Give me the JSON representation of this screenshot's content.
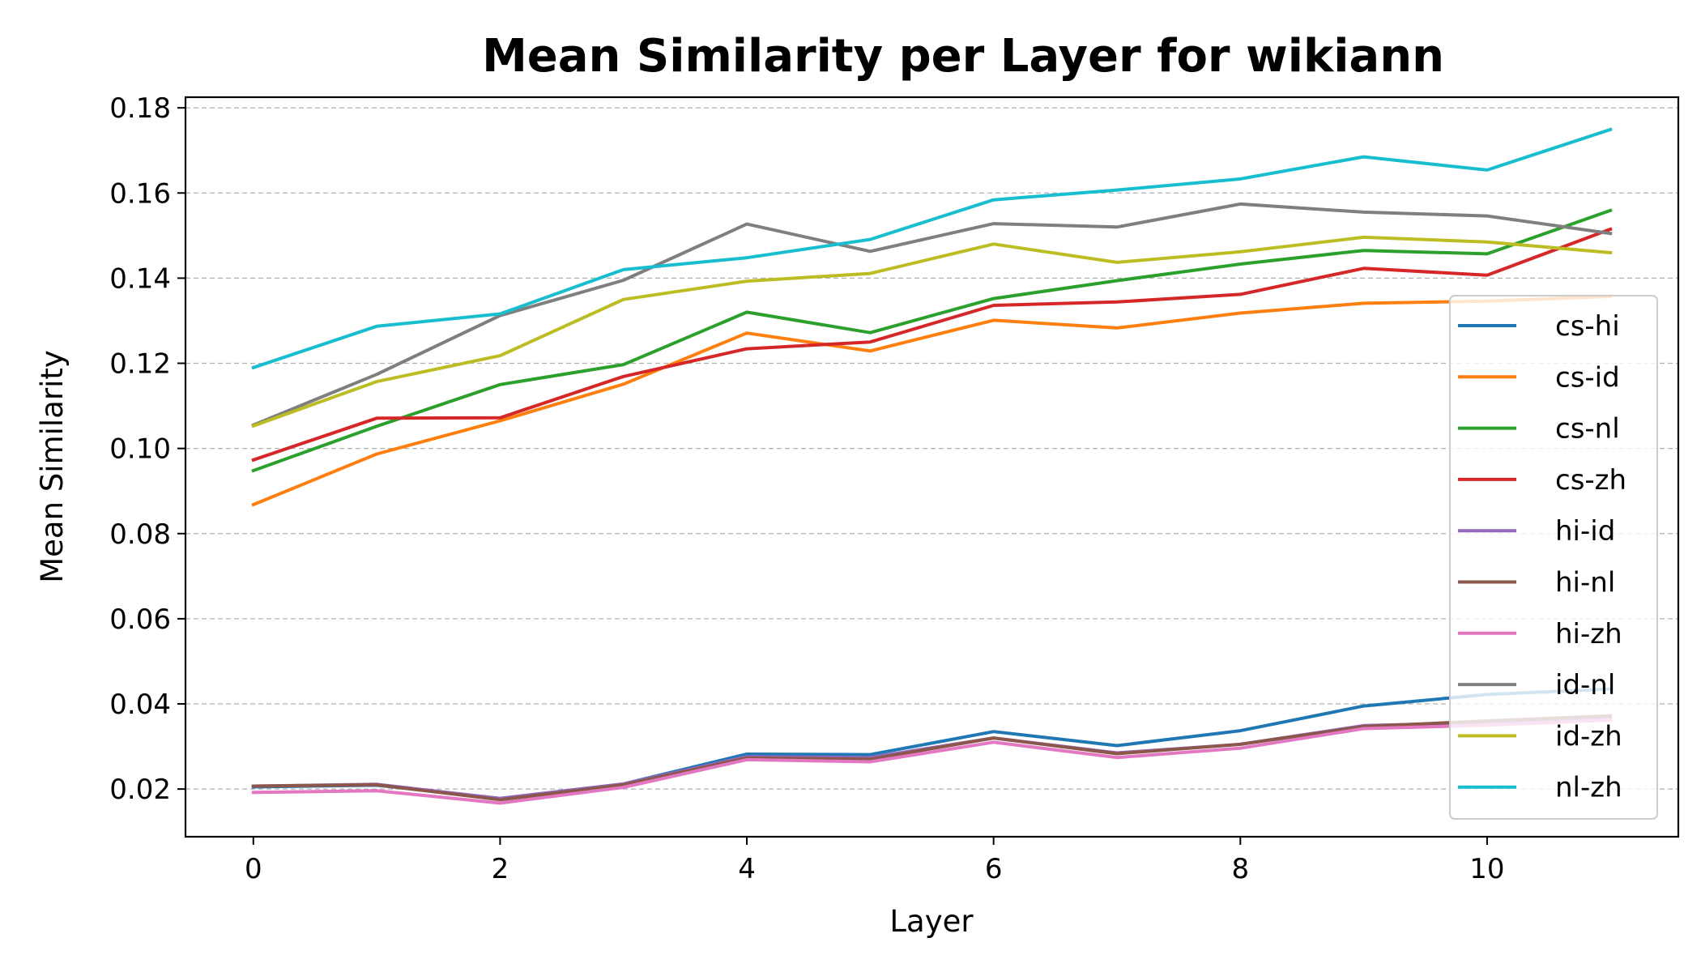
{
  "chart_data": {
    "type": "line",
    "title": "Mean Similarity per Layer for wikiann",
    "xlabel": "Layer",
    "ylabel": "Mean Similarity",
    "x": [
      0,
      1,
      2,
      3,
      4,
      5,
      6,
      7,
      8,
      9,
      10,
      11
    ],
    "xticks": [
      0,
      2,
      4,
      6,
      8,
      10
    ],
    "yticks": [
      0.02,
      0.04,
      0.06,
      0.08,
      0.1,
      0.12,
      0.14,
      0.16,
      0.18
    ],
    "xlim": [
      -0.55,
      11.55
    ],
    "ylim": [
      0.0088,
      0.1825
    ],
    "grid": "horizontal dashed",
    "legend_position": "lower-right",
    "series": [
      {
        "name": "cs-hi",
        "color": "#1f77b4",
        "values": [
          0.0205,
          0.0209,
          0.0178,
          0.0212,
          0.0282,
          0.0281,
          0.0335,
          0.0302,
          0.0337,
          0.0395,
          0.0422,
          0.0435
        ]
      },
      {
        "name": "cs-id",
        "color": "#ff7f0e",
        "values": [
          0.0868,
          0.0987,
          0.1065,
          0.1151,
          0.1271,
          0.1229,
          0.1301,
          0.1283,
          0.1318,
          0.1341,
          0.1346,
          0.1357
        ]
      },
      {
        "name": "cs-nl",
        "color": "#2ca02c",
        "values": [
          0.0948,
          0.1052,
          0.115,
          0.1197,
          0.132,
          0.1272,
          0.1352,
          0.1394,
          0.1433,
          0.1465,
          0.1457,
          0.1559
        ]
      },
      {
        "name": "cs-zh",
        "color": "#d62728",
        "values": [
          0.0973,
          0.1071,
          0.1072,
          0.1169,
          0.1234,
          0.125,
          0.1336,
          0.1344,
          0.1362,
          0.1423,
          0.1407,
          0.1515
        ]
      },
      {
        "name": "hi-id",
        "color": "#9467bd",
        "values": [
          0.0207,
          0.0211,
          0.0178,
          0.0212,
          0.0276,
          0.0274,
          0.032,
          0.0285,
          0.0305,
          0.0349,
          0.0356,
          0.0368
        ]
      },
      {
        "name": "hi-nl",
        "color": "#8c564b",
        "values": [
          0.0207,
          0.021,
          0.0175,
          0.021,
          0.0273,
          0.027,
          0.032,
          0.0283,
          0.0305,
          0.0347,
          0.036,
          0.0372
        ]
      },
      {
        "name": "hi-zh",
        "color": "#e377c2",
        "values": [
          0.0192,
          0.0196,
          0.0167,
          0.0204,
          0.0269,
          0.0264,
          0.031,
          0.0274,
          0.0296,
          0.0342,
          0.035,
          0.0362
        ]
      },
      {
        "name": "id-nl",
        "color": "#7f7f7f",
        "values": [
          0.1055,
          0.1174,
          0.1312,
          0.1395,
          0.1527,
          0.1463,
          0.1528,
          0.152,
          0.1574,
          0.1555,
          0.1546,
          0.1505
        ]
      },
      {
        "name": "id-zh",
        "color": "#bcbd22",
        "values": [
          0.1053,
          0.1157,
          0.1218,
          0.135,
          0.1393,
          0.1411,
          0.148,
          0.1437,
          0.1462,
          0.1496,
          0.1485,
          0.146
        ]
      },
      {
        "name": "nl-zh",
        "color": "#17becf",
        "values": [
          0.119,
          0.1287,
          0.1316,
          0.142,
          0.1448,
          0.1491,
          0.1584,
          0.1607,
          0.1633,
          0.1685,
          0.1654,
          0.1749
        ]
      }
    ]
  }
}
